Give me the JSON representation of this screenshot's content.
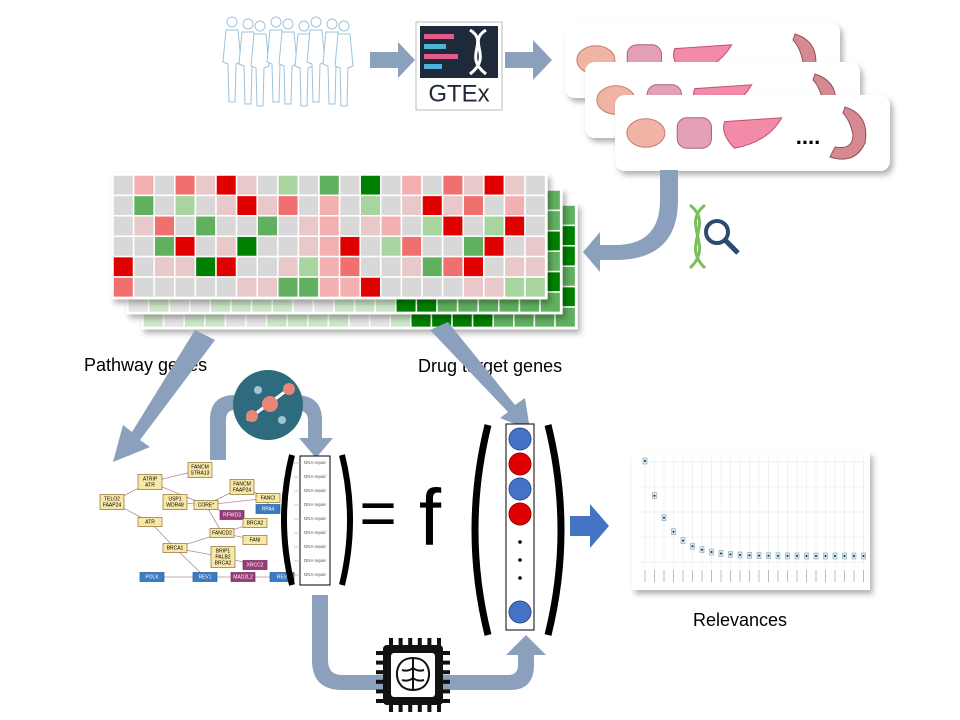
{
  "logo": "GTEx",
  "organ_cards": {
    "ellipsis": "...."
  },
  "labels": {
    "pathway_genes": "Pathway genes",
    "drug_target_genes": "Drug target genes",
    "relevances": "Relevances"
  },
  "equation": {
    "equals": "=",
    "function": "f"
  },
  "pathway_network": {
    "nodes": [
      {
        "lines": [
          "TELO2",
          "FAAP24"
        ]
      },
      {
        "lines": [
          "ATRIP",
          "ATR"
        ]
      },
      {
        "lines": [
          "FANCM",
          "STRA13"
        ]
      },
      {
        "lines": [
          "USP1",
          "WDR48"
        ]
      },
      {
        "lines": [
          "CORE*"
        ]
      },
      {
        "lines": [
          "FANCM",
          "FAAP24"
        ]
      },
      {
        "lines": [
          "FANCI"
        ]
      },
      {
        "lines": [
          "RPA4"
        ]
      },
      {
        "lines": [
          "RFWD3"
        ]
      },
      {
        "lines": [
          "ATR"
        ]
      },
      {
        "lines": [
          "FANCD2"
        ]
      },
      {
        "lines": [
          "BRCA2"
        ]
      },
      {
        "lines": [
          "FANI"
        ]
      },
      {
        "lines": [
          "BRCA1"
        ]
      },
      {
        "lines": [
          "BRIP1",
          "PALB2",
          "BRCA2"
        ]
      },
      {
        "lines": [
          "XRCC2"
        ]
      },
      {
        "lines": [
          "POLK"
        ]
      },
      {
        "lines": [
          "REV1"
        ]
      },
      {
        "lines": [
          "MAD2L2"
        ]
      },
      {
        "lines": [
          "REV"
        ]
      }
    ],
    "pathway_vector": [
      "DNA repair",
      "DNA repair",
      "DNA repair",
      "DNA repair",
      "DNA repair",
      "DNA repair",
      "DNA repair",
      "DNA repair",
      "DNA repair"
    ]
  }
}
